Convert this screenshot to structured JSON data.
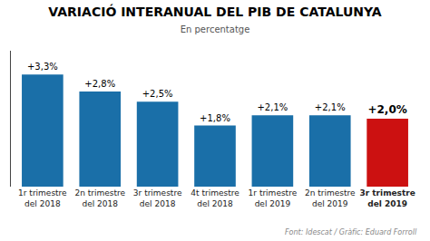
{
  "chart_data": {
    "type": "bar",
    "title": "VARIACIÓ INTERANUAL DEL PIB DE CATALUNYA",
    "subtitle": "En percentatge",
    "footer": "Font: Idescat / Gràfic: Eduard Forroll",
    "categories": [
      "1r trimestre\ndel 2018",
      "2n trimestre\ndel 2018",
      "3r trimestre\ndel 2018",
      "4t trimestre\ndel 2018",
      "1r trimestre\ndel 2019",
      "2n trimestre\ndel 2019",
      "3r trimestre\ndel 2019"
    ],
    "values": [
      3.3,
      2.8,
      2.5,
      1.8,
      2.1,
      2.1,
      2.0
    ],
    "value_labels": [
      "+3,3%",
      "+2,8%",
      "+2,5%",
      "+1,8%",
      "+2,1%",
      "+2,1%",
      "+2,0%"
    ],
    "colors": [
      "#1a6fa8",
      "#1a6fa8",
      "#1a6fa8",
      "#1a6fa8",
      "#1a6fa8",
      "#1a6fa8",
      "#cc1111"
    ],
    "ylim": [
      0,
      4.0
    ],
    "data_labels": true,
    "tick_labels": "x",
    "grid": false
  }
}
